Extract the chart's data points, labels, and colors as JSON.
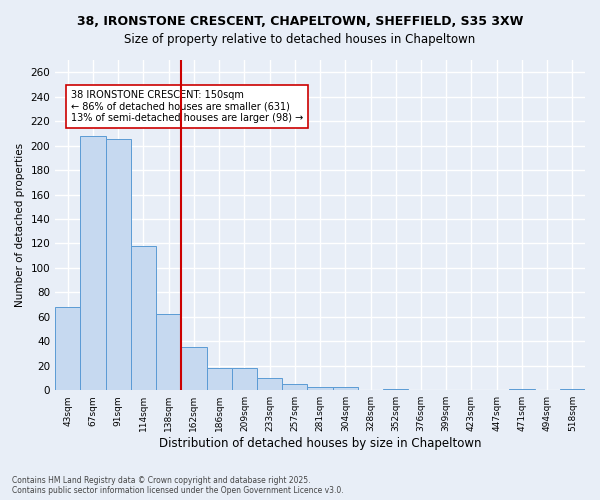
{
  "title_line1": "38, IRONSTONE CRESCENT, CHAPELTOWN, SHEFFIELD, S35 3XW",
  "title_line2": "Size of property relative to detached houses in Chapeltown",
  "xlabel": "Distribution of detached houses by size in Chapeltown",
  "ylabel": "Number of detached properties",
  "categories": [
    "43sqm",
    "67sqm",
    "91sqm",
    "114sqm",
    "138sqm",
    "162sqm",
    "186sqm",
    "209sqm",
    "233sqm",
    "257sqm",
    "281sqm",
    "304sqm",
    "328sqm",
    "352sqm",
    "376sqm",
    "399sqm",
    "423sqm",
    "447sqm",
    "471sqm",
    "494sqm",
    "518sqm"
  ],
  "values": [
    68,
    208,
    205,
    118,
    62,
    35,
    18,
    18,
    10,
    5,
    3,
    3,
    0,
    1,
    0,
    0,
    0,
    0,
    1,
    0,
    1
  ],
  "bar_color": "#c6d9f0",
  "bar_edge_color": "#5b9bd5",
  "vline_x": 4.5,
  "vline_color": "#cc0000",
  "annotation_text": "38 IRONSTONE CRESCENT: 150sqm\n← 86% of detached houses are smaller (631)\n13% of semi-detached houses are larger (98) →",
  "background_color": "#e8eef7",
  "grid_color": "#ffffff",
  "ylim": [
    0,
    270
  ],
  "yticks": [
    0,
    20,
    40,
    60,
    80,
    100,
    120,
    140,
    160,
    180,
    200,
    220,
    240,
    260
  ],
  "footer_line1": "Contains HM Land Registry data © Crown copyright and database right 2025.",
  "footer_line2": "Contains public sector information licensed under the Open Government Licence v3.0."
}
